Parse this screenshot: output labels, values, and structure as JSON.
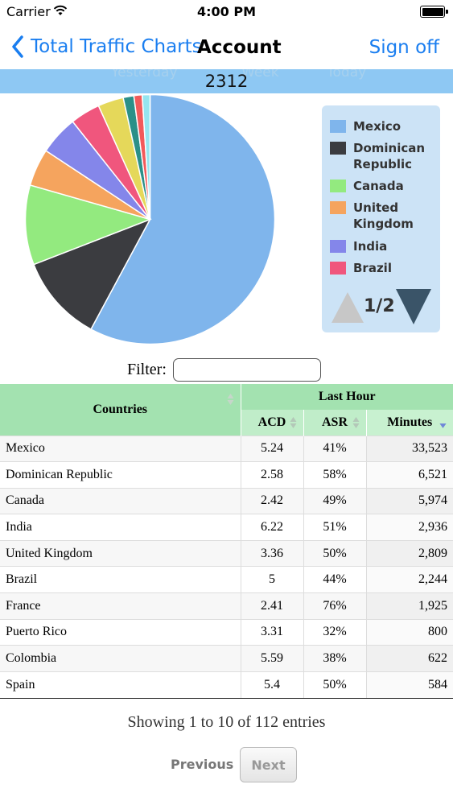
{
  "status_bar": {
    "carrier": "Carrier",
    "time": "4:00 PM"
  },
  "nav": {
    "back_label": "Total Traffic Charts",
    "title": "Account",
    "sign_off": "Sign off"
  },
  "summary": {
    "total": "2312",
    "ghost_tabs": [
      "Yesterday",
      "Week",
      "Today"
    ]
  },
  "colors": {
    "accent": "#1a7ef0",
    "band": "#8ec8f3",
    "table_header": "#a3e2b0",
    "legend_bg": "#cce3f6"
  },
  "chart_data": {
    "type": "pie",
    "slices": [
      {
        "label": "Mexico",
        "value": 33523,
        "color": "#7fb5ec"
      },
      {
        "label": "Dominican Republic",
        "value": 6521,
        "color": "#3b3c40"
      },
      {
        "label": "Canada",
        "value": 5974,
        "color": "#93ea7f"
      },
      {
        "label": "United Kingdom",
        "value": 2809,
        "color": "#f5a45e"
      },
      {
        "label": "India",
        "value": 2936,
        "color": "#8486ea"
      },
      {
        "label": "Brazil",
        "value": 2244,
        "color": "#f0567d"
      },
      {
        "label": "France",
        "value": 1925,
        "color": "#e5d85a"
      },
      {
        "label": "Puerto Rico",
        "value": 800,
        "color": "#2b9088"
      },
      {
        "label": "Colombia",
        "value": 622,
        "color": "#f25a5a"
      },
      {
        "label": "Spain",
        "value": 584,
        "color": "#95e5ef"
      }
    ],
    "legend_placement": "right"
  },
  "legend": {
    "items": [
      {
        "label": "Mexico",
        "color": "#7fb5ec"
      },
      {
        "label": "Dominican Republic",
        "color": "#3b3c40"
      },
      {
        "label": "Canada",
        "color": "#93ea7f"
      },
      {
        "label": "United Kingdom",
        "color": "#f5a45e"
      },
      {
        "label": "India",
        "color": "#8486ea"
      },
      {
        "label": "Brazil",
        "color": "#f0567d"
      }
    ],
    "page": "1/2"
  },
  "filter": {
    "label": "Filter:",
    "value": ""
  },
  "table": {
    "group_header": "Last Hour",
    "headers": {
      "countries": "Countries",
      "acd": "ACD",
      "asr": "ASR",
      "minutes": "Minutes"
    },
    "rows": [
      {
        "country": "Mexico",
        "acd": "5.24",
        "asr": "41%",
        "minutes": "33,523"
      },
      {
        "country": "Dominican Republic",
        "acd": "2.58",
        "asr": "58%",
        "minutes": "6,521"
      },
      {
        "country": "Canada",
        "acd": "2.42",
        "asr": "49%",
        "minutes": "5,974"
      },
      {
        "country": "India",
        "acd": "6.22",
        "asr": "51%",
        "minutes": "2,936"
      },
      {
        "country": "United Kingdom",
        "acd": "3.36",
        "asr": "50%",
        "minutes": "2,809"
      },
      {
        "country": "Brazil",
        "acd": "5",
        "asr": "44%",
        "minutes": "2,244"
      },
      {
        "country": "France",
        "acd": "2.41",
        "asr": "76%",
        "minutes": "1,925"
      },
      {
        "country": "Puerto Rico",
        "acd": "3.31",
        "asr": "32%",
        "minutes": "800"
      },
      {
        "country": "Colombia",
        "acd": "5.59",
        "asr": "38%",
        "minutes": "622"
      },
      {
        "country": "Spain",
        "acd": "5.4",
        "asr": "50%",
        "minutes": "584"
      }
    ]
  },
  "pagination": {
    "info": "Showing 1 to 10 of 112 entries",
    "previous": "Previous",
    "next": "Next"
  }
}
